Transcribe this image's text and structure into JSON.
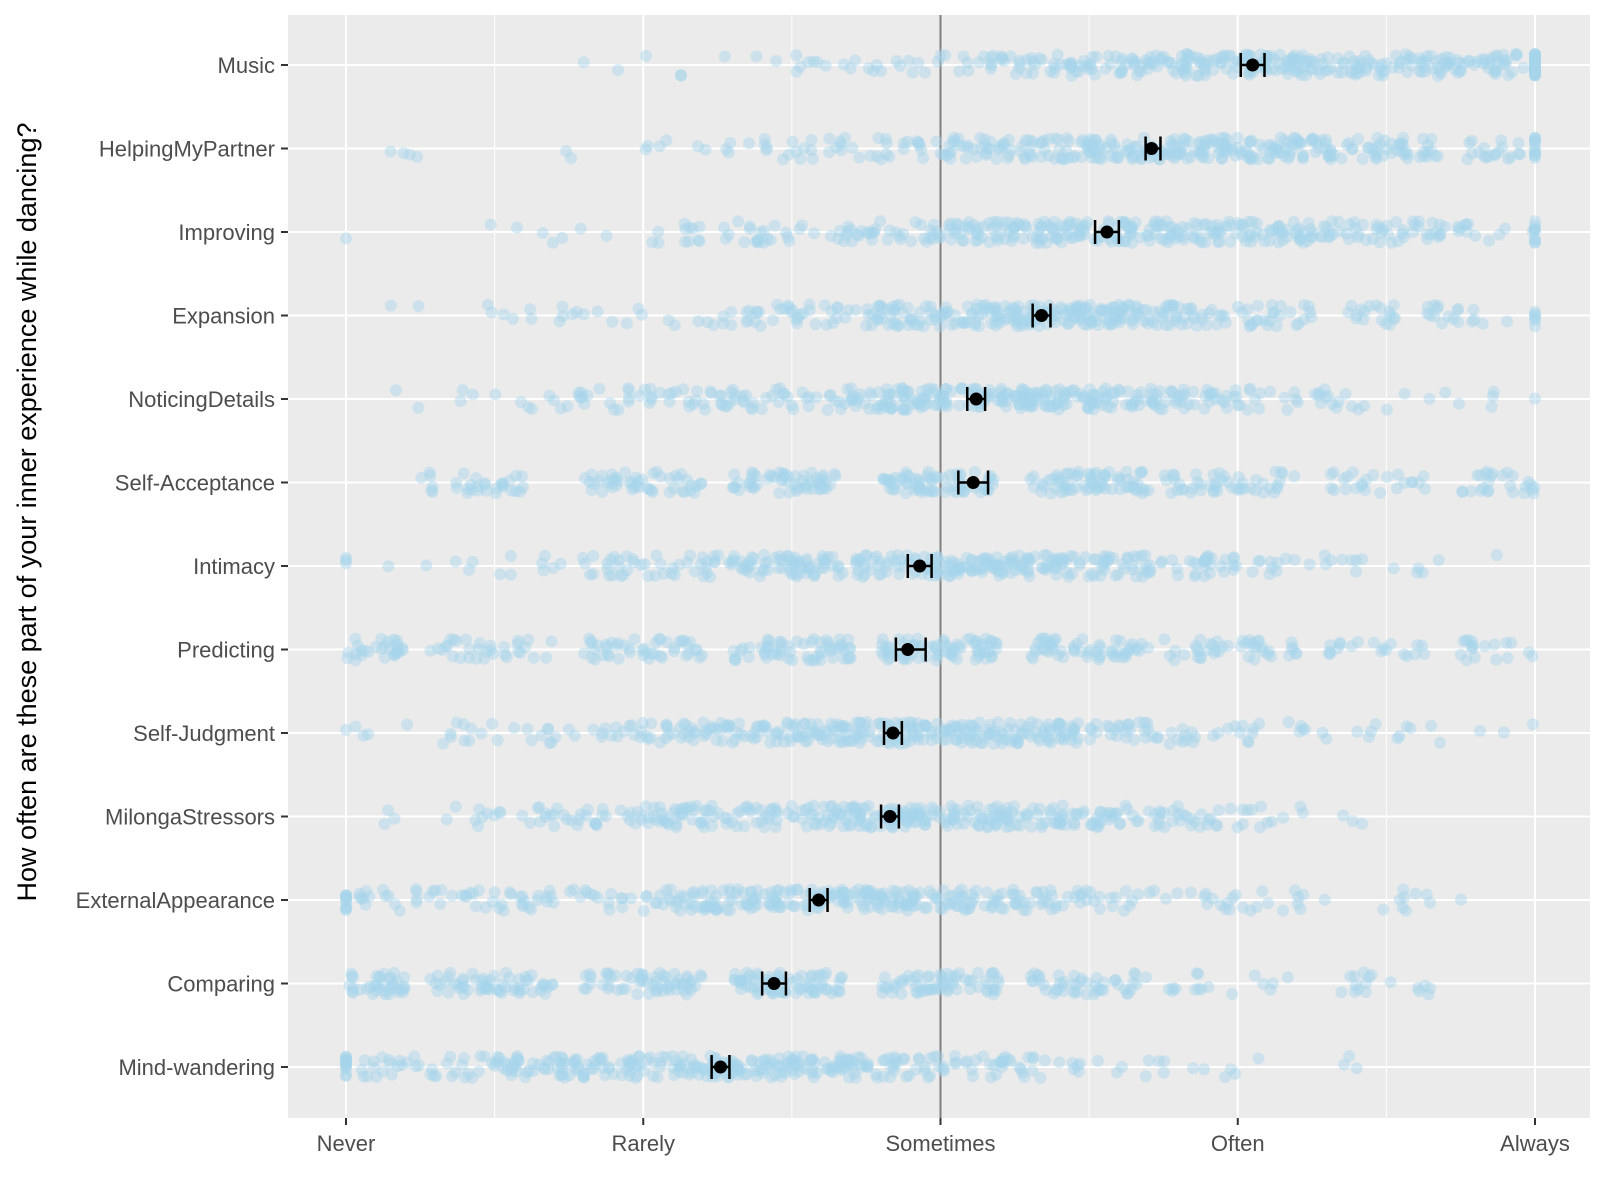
{
  "chart_data": {
    "type": "scatter",
    "title": "",
    "xlabel": "",
    "ylabel": "How often are these part of your inner experience while dancing?",
    "x_tick_labels": [
      "Never",
      "Rarely",
      "Sometimes",
      "Often",
      "Always"
    ],
    "x_range": [
      0.8,
      5.05
    ],
    "reference_line_x": 3,
    "grid": true,
    "legend": "none",
    "colors": {
      "panel": "#ebebeb",
      "grid": "#ffffff",
      "points": "#a6d4ea",
      "mean": "#000000",
      "reference_line": "#7f7f7f"
    },
    "categories": [
      "Music",
      "HelpingMyPartner",
      "Improving",
      "Expansion",
      "NoticingDetails",
      "Self-Acceptance",
      "Intimacy",
      "Predicting",
      "Self-Judgment",
      "MilongaStressors",
      "ExternalAppearance",
      "Comparing",
      "Mind-wandering"
    ],
    "means": [
      {
        "category": "Music",
        "mean": 4.05,
        "ci": [
          4.01,
          4.09
        ]
      },
      {
        "category": "HelpingMyPartner",
        "mean": 3.71,
        "ci": [
          3.69,
          3.74
        ]
      },
      {
        "category": "Improving",
        "mean": 3.56,
        "ci": [
          3.52,
          3.6
        ]
      },
      {
        "category": "Expansion",
        "mean": 3.34,
        "ci": [
          3.31,
          3.37
        ]
      },
      {
        "category": "NoticingDetails",
        "mean": 3.12,
        "ci": [
          3.09,
          3.15
        ]
      },
      {
        "category": "Self-Acceptance",
        "mean": 3.11,
        "ci": [
          3.06,
          3.16
        ]
      },
      {
        "category": "Intimacy",
        "mean": 2.93,
        "ci": [
          2.89,
          2.97
        ]
      },
      {
        "category": "Predicting",
        "mean": 2.89,
        "ci": [
          2.85,
          2.95
        ]
      },
      {
        "category": "Self-Judgment",
        "mean": 2.84,
        "ci": [
          2.81,
          2.87
        ]
      },
      {
        "category": "MilongaStressors",
        "mean": 2.83,
        "ci": [
          2.8,
          2.86
        ]
      },
      {
        "category": "ExternalAppearance",
        "mean": 2.59,
        "ci": [
          2.56,
          2.62
        ]
      },
      {
        "category": "Comparing",
        "mean": 2.44,
        "ci": [
          2.4,
          2.48
        ]
      },
      {
        "category": "Mind-wandering",
        "mean": 2.26,
        "ci": [
          2.23,
          2.29
        ]
      }
    ],
    "jitter_points": [
      {
        "category": "Music",
        "min": 1.8,
        "max": 5.0,
        "center": 4.1,
        "spread": 0.75,
        "count": 380,
        "clusters": []
      },
      {
        "category": "HelpingMyPartner",
        "min": 1.15,
        "max": 5.0,
        "center": 3.75,
        "spread": 0.7,
        "count": 380,
        "clusters": []
      },
      {
        "category": "Improving",
        "min": 1.0,
        "max": 5.0,
        "center": 3.55,
        "spread": 0.7,
        "count": 380,
        "clusters": []
      },
      {
        "category": "Expansion",
        "min": 1.15,
        "max": 5.0,
        "center": 3.35,
        "spread": 0.7,
        "count": 380,
        "clusters": []
      },
      {
        "category": "NoticingDetails",
        "min": 1.1,
        "max": 5.0,
        "center": 3.1,
        "spread": 0.7,
        "count": 380,
        "clusters": []
      },
      {
        "category": "Self-Acceptance",
        "min": 1.15,
        "max": 5.0,
        "center": 3.1,
        "spread": 0.8,
        "count": 380,
        "clusters": [
          [
            1.25,
            1.6
          ],
          [
            1.8,
            2.2
          ],
          [
            2.3,
            2.65
          ],
          [
            2.8,
            3.2
          ],
          [
            3.3,
            3.7
          ],
          [
            3.75,
            4.2
          ],
          [
            4.3,
            4.65
          ],
          [
            4.75,
            5.0
          ]
        ]
      },
      {
        "category": "Intimacy",
        "min": 1.0,
        "max": 4.9,
        "center": 2.95,
        "spread": 0.7,
        "count": 380,
        "clusters": []
      },
      {
        "category": "Predicting",
        "min": 1.0,
        "max": 5.0,
        "center": 2.9,
        "spread": 0.9,
        "count": 380,
        "clusters": [
          [
            1.0,
            1.2
          ],
          [
            1.28,
            1.7
          ],
          [
            1.8,
            2.2
          ],
          [
            2.3,
            2.7
          ],
          [
            2.8,
            3.2
          ],
          [
            3.3,
            3.7
          ],
          [
            3.75,
            4.2
          ],
          [
            4.3,
            4.65
          ],
          [
            4.75,
            5.0
          ]
        ]
      },
      {
        "category": "Self-Judgment",
        "min": 1.0,
        "max": 5.0,
        "center": 2.85,
        "spread": 0.7,
        "count": 380,
        "clusters": []
      },
      {
        "category": "MilongaStressors",
        "min": 1.1,
        "max": 4.65,
        "center": 2.85,
        "spread": 0.65,
        "count": 380,
        "clusters": []
      },
      {
        "category": "ExternalAppearance",
        "min": 1.0,
        "max": 4.9,
        "center": 2.55,
        "spread": 0.8,
        "count": 380,
        "clusters": []
      },
      {
        "category": "Comparing",
        "min": 1.0,
        "max": 4.8,
        "center": 2.45,
        "spread": 0.9,
        "count": 380,
        "clusters": [
          [
            1.0,
            1.2
          ],
          [
            1.28,
            1.7
          ],
          [
            1.8,
            2.2
          ],
          [
            2.3,
            2.7
          ],
          [
            2.8,
            3.2
          ],
          [
            3.3,
            3.7
          ],
          [
            3.75,
            4.2
          ],
          [
            4.3,
            4.65
          ]
        ]
      },
      {
        "category": "Mind-wandering",
        "min": 1.0,
        "max": 4.4,
        "center": 2.2,
        "spread": 0.75,
        "count": 380,
        "clusters": []
      }
    ]
  }
}
